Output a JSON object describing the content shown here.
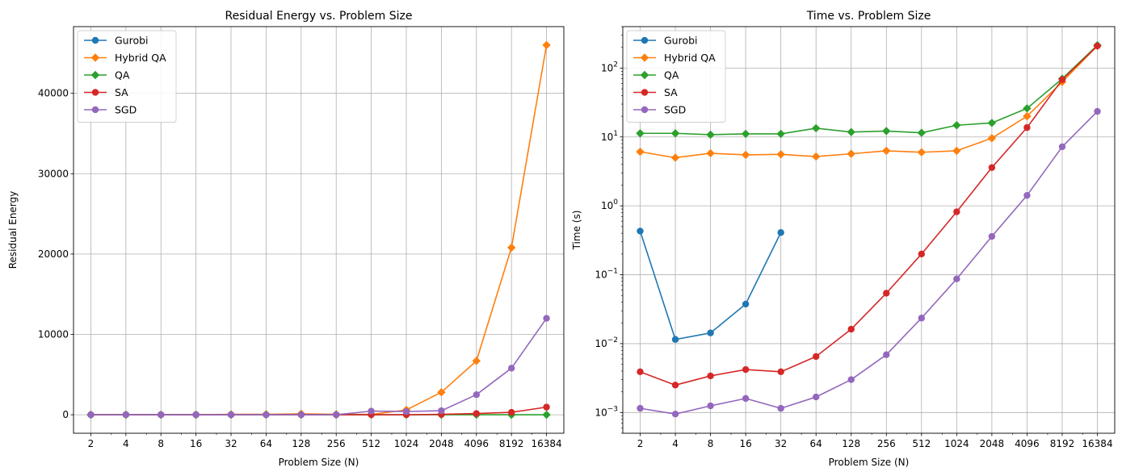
{
  "chart_data": [
    {
      "type": "line",
      "title": "Residual Energy vs. Problem Size",
      "xlabel": "Problem Size (N)",
      "ylabel": "Residual Energy",
      "xscale": "log2",
      "yscale": "linear",
      "x": [
        2,
        4,
        8,
        16,
        32,
        64,
        128,
        256,
        512,
        1024,
        2048,
        4096,
        8192,
        16384
      ],
      "xtick_labels": [
        "2",
        "4",
        "8",
        "16",
        "32",
        "64",
        "128",
        "256",
        "512",
        "1024",
        "2048",
        "4096",
        "8192",
        "16384"
      ],
      "ylim": [
        -2300,
        48300
      ],
      "yticks": [
        0,
        10000,
        20000,
        30000,
        40000
      ],
      "ytick_labels": [
        "0",
        "10000",
        "20000",
        "30000",
        "40000"
      ],
      "grid": true,
      "legend": "top-left",
      "series": [
        {
          "name": "Gurobi",
          "color": "#1f77b4",
          "marker": "circle",
          "values": [
            0,
            0,
            0,
            0,
            0,
            null,
            null,
            null,
            null,
            null,
            null,
            null,
            null,
            null
          ]
        },
        {
          "name": "Hybrid QA",
          "color": "#ff7f0e",
          "marker": "diamond",
          "values": [
            0,
            0,
            0,
            0,
            50,
            60,
            120,
            60,
            40,
            600,
            2800,
            6700,
            20800,
            46000
          ]
        },
        {
          "name": "QA",
          "color": "#2ca02c",
          "marker": "diamond",
          "values": [
            0,
            0,
            0,
            0,
            0,
            0,
            0,
            0,
            0,
            0,
            0,
            0,
            0,
            0
          ]
        },
        {
          "name": "SA",
          "color": "#d62728",
          "marker": "circle",
          "values": [
            0,
            0,
            0,
            0,
            0,
            0,
            0,
            0,
            0,
            0,
            50,
            150,
            300,
            950
          ]
        },
        {
          "name": "SGD",
          "color": "#9467bd",
          "marker": "circle",
          "values": [
            0,
            0,
            0,
            0,
            0,
            0,
            0,
            0,
            450,
            400,
            500,
            2500,
            5800,
            12000
          ]
        }
      ]
    },
    {
      "type": "line",
      "title": "Time vs. Problem Size",
      "xlabel": "Problem Size (N)",
      "ylabel": "Time (s)",
      "xscale": "log2",
      "yscale": "log10",
      "x": [
        2,
        4,
        8,
        16,
        32,
        64,
        128,
        256,
        512,
        1024,
        2048,
        4096,
        8192,
        16384
      ],
      "xtick_labels": [
        "2",
        "4",
        "8",
        "16",
        "32",
        "64",
        "128",
        "256",
        "512",
        "1024",
        "2048",
        "4096",
        "8192",
        "16384"
      ],
      "ylim": [
        0.0005,
        400
      ],
      "yticks": [
        0.001,
        0.01,
        0.1,
        1,
        10,
        100
      ],
      "ytick_labels": [
        "10^-3",
        "10^-2",
        "10^-1",
        "10^0",
        "10^1",
        "10^2"
      ],
      "grid": true,
      "legend": "top-left",
      "series": [
        {
          "name": "Gurobi",
          "color": "#1f77b4",
          "marker": "circle",
          "values": [
            0.43,
            0.0115,
            0.0143,
            0.0375,
            0.41,
            null,
            null,
            null,
            null,
            null,
            null,
            null,
            null,
            null
          ]
        },
        {
          "name": "Hybrid QA",
          "color": "#ff7f0e",
          "marker": "diamond",
          "values": [
            6.1,
            5.0,
            5.8,
            5.5,
            5.6,
            5.2,
            5.7,
            6.3,
            6.0,
            6.3,
            9.6,
            20,
            63,
            210
          ]
        },
        {
          "name": "QA",
          "color": "#2ca02c",
          "marker": "diamond",
          "values": [
            11.3,
            11.3,
            10.8,
            11.1,
            11.1,
            13.4,
            11.8,
            12.2,
            11.5,
            14.8,
            16.0,
            26,
            70,
            215
          ]
        },
        {
          "name": "SA",
          "color": "#d62728",
          "marker": "circle",
          "values": [
            0.0039,
            0.0025,
            0.0034,
            0.0042,
            0.0039,
            0.0065,
            0.0162,
            0.054,
            0.2,
            0.82,
            3.6,
            13.7,
            68,
            210
          ]
        },
        {
          "name": "SGD",
          "color": "#9467bd",
          "marker": "circle",
          "values": [
            0.00115,
            0.00095,
            0.00125,
            0.0016,
            0.00115,
            0.00168,
            0.003,
            0.0069,
            0.0235,
            0.087,
            0.36,
            1.42,
            7.2,
            23.5
          ]
        }
      ]
    }
  ]
}
